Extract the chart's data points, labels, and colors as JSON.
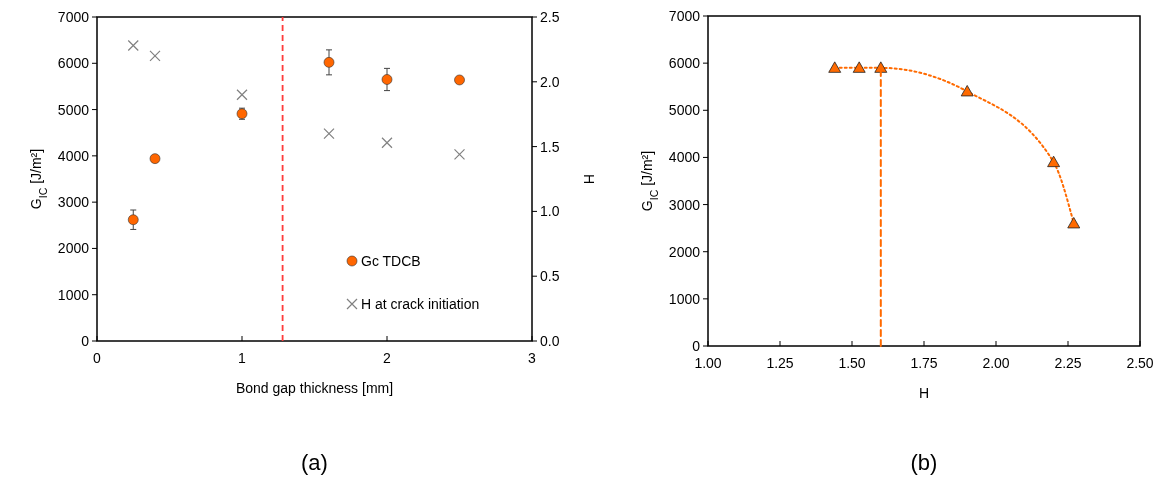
{
  "chart_data": [
    {
      "type": "scatter",
      "xlabel": "Bond gap thickness [mm]",
      "ylabel": "G$_{IC}$ [J/m²]",
      "y2label": "H",
      "xlim": [
        0,
        3
      ],
      "xticks": [
        0,
        1,
        2,
        3
      ],
      "ylim": [
        0,
        7000
      ],
      "yticks": [
        0,
        1000,
        2000,
        3000,
        4000,
        5000,
        6000,
        7000
      ],
      "y2lim": [
        0,
        2.5
      ],
      "y2ticks": [
        {
          "value": 0,
          "label": "0.0"
        },
        {
          "value": 0.5,
          "label": "0.5"
        },
        {
          "value": 1,
          "label": "1.0"
        },
        {
          "value": 1.5,
          "label": "1.5"
        },
        {
          "value": 2,
          "label": "2.0"
        },
        {
          "value": 2.5,
          "label": "2.5"
        }
      ],
      "x": [
        0.25,
        0.4,
        1,
        1.6,
        2,
        2.5
      ],
      "grid": false,
      "legend": "bottom right",
      "annotations": [
        "(a)"
      ],
      "ref_lines": [
        {
          "axis": "x",
          "value": 1.28,
          "color": "#ff3b3b",
          "line_style": "dashed"
        }
      ],
      "series": [
        {
          "name": "Gc TDCB",
          "color": "#ff6600",
          "marker": "circle",
          "values": [
            2620,
            3940,
            4910,
            6020,
            5650,
            5640
          ],
          "errors": [
            210,
            null,
            120,
            270,
            240,
            null
          ]
        },
        {
          "name": "H at crack initiation",
          "color": "#808080",
          "marker": "cross",
          "axis": "y2",
          "values": [
            2.28,
            2.2,
            1.9,
            1.6,
            1.53,
            1.44
          ]
        }
      ]
    },
    {
      "type": "line",
      "xlabel": "H",
      "ylabel": "G$_{IC}$ [J/m²]",
      "xlim": [
        1,
        2.5
      ],
      "xticks": [
        {
          "value": 1,
          "label": "1.00"
        },
        {
          "value": 1.25,
          "label": "1.25"
        },
        {
          "value": 1.5,
          "label": "1.50"
        },
        {
          "value": 1.75,
          "label": "1.75"
        },
        {
          "value": 2,
          "label": "2.00"
        },
        {
          "value": 2.25,
          "label": "2.25"
        },
        {
          "value": 2.5,
          "label": "2.50"
        }
      ],
      "ylim": [
        0,
        7000
      ],
      "yticks": [
        0,
        1000,
        2000,
        3000,
        4000,
        5000,
        6000,
        7000
      ],
      "grid": false,
      "annotations": [
        "(b)"
      ],
      "series": [
        {
          "color": "#ff6a00",
          "marker": "triangle",
          "line_style": "dotted",
          "x": [
            1.44,
            1.525,
            1.6,
            1.9,
            2.2,
            2.27
          ],
          "values": [
            5900,
            5900,
            5900,
            5400,
            3900,
            2600
          ]
        },
        {
          "color": "#ff6a00",
          "marker": "none",
          "line_style": "dashed",
          "x": [
            1.6,
            1.6
          ],
          "values": [
            0,
            5900
          ]
        }
      ]
    }
  ]
}
